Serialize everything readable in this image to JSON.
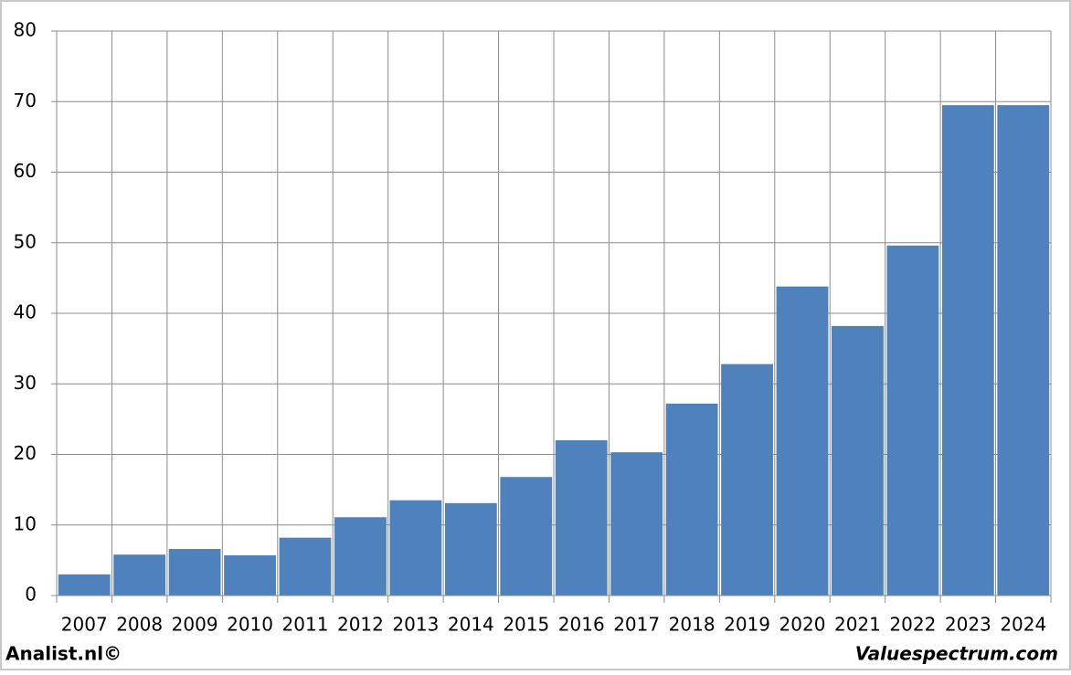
{
  "chart_data": {
    "type": "bar",
    "categories": [
      "2007",
      "2008",
      "2009",
      "2010",
      "2011",
      "2012",
      "2013",
      "2014",
      "2015",
      "2016",
      "2017",
      "2018",
      "2019",
      "2020",
      "2021",
      "2022",
      "2023",
      "2024"
    ],
    "values": [
      3.0,
      5.8,
      6.6,
      5.7,
      8.2,
      11.1,
      13.5,
      13.1,
      16.8,
      22.0,
      20.3,
      27.2,
      32.8,
      43.8,
      38.2,
      49.6,
      69.5,
      69.5
    ],
    "color": "#4f81bd",
    "ylim": [
      0,
      80
    ],
    "yticks": [
      0,
      10,
      20,
      30,
      40,
      50,
      60,
      70,
      80
    ],
    "grid": true,
    "source_left": "Analist.nl©",
    "source_right": "Valuespectrum.com"
  }
}
